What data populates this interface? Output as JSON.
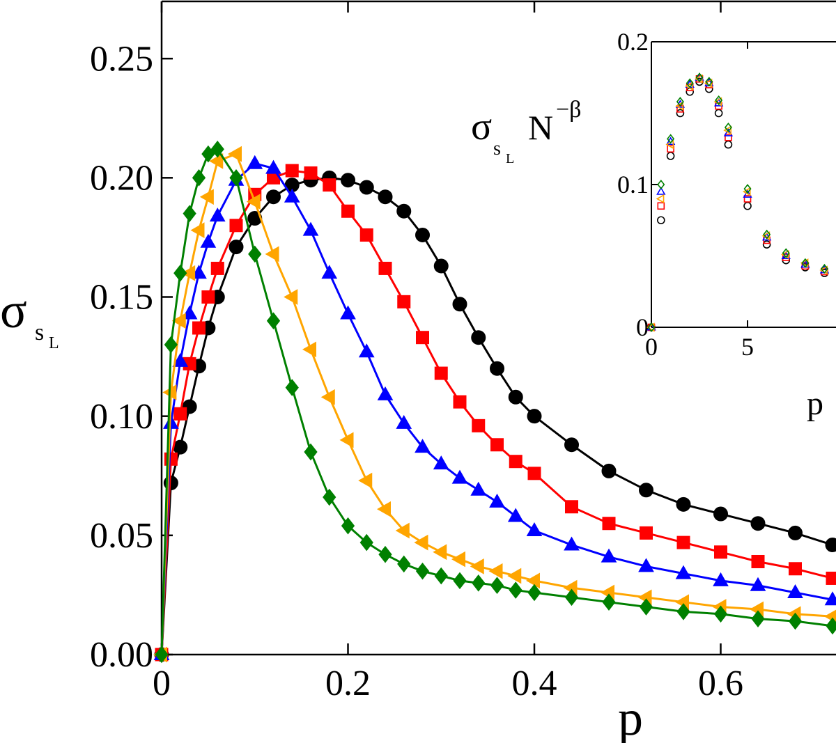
{
  "chart_data": [
    {
      "type": "line",
      "xlabel": "p",
      "ylabel": [
        "σ",
        "s",
        "L"
      ],
      "xlim": [
        0,
        0.72
      ],
      "ylim": [
        0,
        0.274
      ],
      "xticks": [
        0,
        0.2,
        0.4,
        0.6
      ],
      "yticks": [
        {
          "value": 0,
          "label": "0.00"
        },
        0.05,
        {
          "value": 0.1,
          "label": "0.10"
        },
        0.15,
        {
          "value": 0.2,
          "label": "0.20"
        },
        0.25
      ],
      "filled": true,
      "x": [
        0,
        0.01,
        0.02,
        0.03,
        0.04,
        0.05,
        0.06,
        0.08,
        0.1,
        0.12,
        0.14,
        0.16,
        0.18,
        0.2,
        0.22,
        0.24,
        0.26,
        0.28,
        0.3,
        0.32,
        0.34,
        0.36,
        0.38,
        0.4,
        0.44,
        0.48,
        0.52,
        0.56,
        0.6,
        0.64,
        0.68,
        0.72
      ],
      "series": [
        {
          "color": "#000000",
          "marker": "circle",
          "values": [
            0,
            0.072,
            0.087,
            0.104,
            0.121,
            0.137,
            0.15,
            0.171,
            0.183,
            0.192,
            0.197,
            0.199,
            0.2,
            0.199,
            0.196,
            0.192,
            0.186,
            0.176,
            0.163,
            0.147,
            0.133,
            0.12,
            0.108,
            0.1,
            0.088,
            0.077,
            0.069,
            0.063,
            0.059,
            0.055,
            0.051,
            0.046
          ]
        },
        {
          "color": "#ff0000",
          "marker": "square",
          "values": [
            0,
            0.082,
            0.101,
            0.122,
            0.137,
            0.15,
            0.162,
            0.18,
            0.193,
            0.2,
            0.203,
            0.202,
            0.197,
            0.186,
            0.176,
            0.162,
            0.148,
            0.133,
            0.118,
            0.106,
            0.096,
            0.088,
            0.081,
            0.076,
            0.062,
            0.055,
            0.051,
            0.047,
            0.043,
            0.039,
            0.036,
            0.032
          ]
        },
        {
          "color": "#0000ff",
          "marker": "triangle-up",
          "values": [
            0,
            0.097,
            0.123,
            0.143,
            0.16,
            0.173,
            0.184,
            0.199,
            0.206,
            0.204,
            0.192,
            0.178,
            0.16,
            0.143,
            0.127,
            0.109,
            0.097,
            0.087,
            0.08,
            0.074,
            0.069,
            0.064,
            0.058,
            0.052,
            0.046,
            0.041,
            0.037,
            0.034,
            0.031,
            0.029,
            0.026,
            0.023
          ]
        },
        {
          "color": "#ffa500",
          "marker": "triangle-left",
          "values": [
            0,
            0.11,
            0.14,
            0.16,
            0.178,
            0.192,
            0.207,
            0.21,
            0.19,
            0.168,
            0.15,
            0.128,
            0.108,
            0.09,
            0.073,
            0.061,
            0.052,
            0.047,
            0.043,
            0.04,
            0.037,
            0.035,
            0.033,
            0.031,
            0.028,
            0.026,
            0.024,
            0.022,
            0.02,
            0.019,
            0.017,
            0.016
          ]
        },
        {
          "color": "#008000",
          "marker": "diamond",
          "values": [
            0,
            0.13,
            0.16,
            0.185,
            0.2,
            0.21,
            0.212,
            0.2,
            0.168,
            0.14,
            0.112,
            0.085,
            0.066,
            0.054,
            0.047,
            0.042,
            0.038,
            0.035,
            0.033,
            0.031,
            0.03,
            0.029,
            0.027,
            0.026,
            0.024,
            0.022,
            0.02,
            0.018,
            0.017,
            0.015,
            0.014,
            0.012
          ]
        }
      ]
    },
    {
      "type": "scatter",
      "xlabel": "p",
      "ylabel": [
        "σ",
        "s",
        "L",
        "N",
        "−β"
      ],
      "xlim": [
        0,
        9.6
      ],
      "ylim": [
        0,
        0.2
      ],
      "xticks": [
        0,
        5
      ],
      "yticks": [
        0,
        0.1,
        0.2
      ],
      "filled": false,
      "x": [
        0,
        0.5,
        1,
        1.5,
        2,
        2.5,
        3,
        3.5,
        4,
        5,
        6,
        7,
        8,
        9
      ],
      "series": [
        {
          "color": "#000000",
          "marker": "circle",
          "values": [
            0,
            0.075,
            0.12,
            0.15,
            0.165,
            0.172,
            0.167,
            0.15,
            0.128,
            0.085,
            0.058,
            0.047,
            0.042,
            0.038
          ]
        },
        {
          "color": "#ff0000",
          "marker": "square",
          "values": [
            0,
            0.085,
            0.125,
            0.153,
            0.168,
            0.174,
            0.17,
            0.155,
            0.133,
            0.09,
            0.061,
            0.049,
            0.043,
            0.039
          ]
        },
        {
          "color": "#0000ff",
          "marker": "triangle-up",
          "values": [
            0,
            0.095,
            0.13,
            0.156,
            0.17,
            0.175,
            0.171,
            0.157,
            0.136,
            0.093,
            0.063,
            0.05,
            0.044,
            0.04
          ]
        },
        {
          "color": "#ffa500",
          "marker": "triangle-left",
          "values": [
            0,
            0.09,
            0.128,
            0.155,
            0.169,
            0.174,
            0.171,
            0.158,
            0.138,
            0.095,
            0.064,
            0.051,
            0.045,
            0.04
          ]
        },
        {
          "color": "#008000",
          "marker": "diamond",
          "values": [
            0,
            0.1,
            0.132,
            0.158,
            0.171,
            0.175,
            0.172,
            0.159,
            0.14,
            0.097,
            0.065,
            0.052,
            0.045,
            0.041
          ]
        }
      ]
    }
  ]
}
